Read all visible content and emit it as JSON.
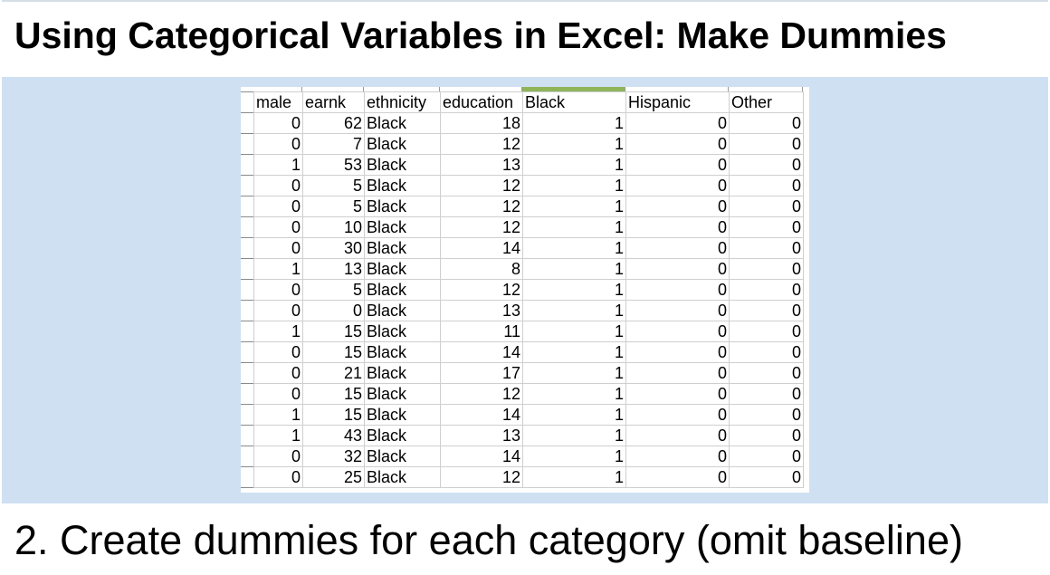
{
  "slide": {
    "title": "Using Categorical Variables in Excel: Make Dummies",
    "caption": "2. Create dummies for each category (omit baseline)"
  },
  "colors": {
    "panel_background": "#cfe0f2",
    "selected_column_header": "#8fb45a",
    "gridline": "#cfcfcf"
  },
  "spreadsheet": {
    "selected_column": "Black",
    "columns": [
      {
        "label": "male",
        "align": "num"
      },
      {
        "label": "earnk",
        "align": "num"
      },
      {
        "label": "ethnicity",
        "align": "txt"
      },
      {
        "label": "education",
        "align": "num"
      },
      {
        "label": "Black",
        "align": "num"
      },
      {
        "label": "Hispanic",
        "align": "num"
      },
      {
        "label": "Other",
        "align": "num"
      }
    ],
    "rows": [
      [
        "0",
        "62",
        "Black",
        "18",
        "1",
        "0",
        "0"
      ],
      [
        "0",
        "7",
        "Black",
        "12",
        "1",
        "0",
        "0"
      ],
      [
        "1",
        "53",
        "Black",
        "13",
        "1",
        "0",
        "0"
      ],
      [
        "0",
        "5",
        "Black",
        "12",
        "1",
        "0",
        "0"
      ],
      [
        "0",
        "5",
        "Black",
        "12",
        "1",
        "0",
        "0"
      ],
      [
        "0",
        "10",
        "Black",
        "12",
        "1",
        "0",
        "0"
      ],
      [
        "0",
        "30",
        "Black",
        "14",
        "1",
        "0",
        "0"
      ],
      [
        "1",
        "13",
        "Black",
        "8",
        "1",
        "0",
        "0"
      ],
      [
        "0",
        "5",
        "Black",
        "12",
        "1",
        "0",
        "0"
      ],
      [
        "0",
        "0",
        "Black",
        "13",
        "1",
        "0",
        "0"
      ],
      [
        "1",
        "15",
        "Black",
        "11",
        "1",
        "0",
        "0"
      ],
      [
        "0",
        "15",
        "Black",
        "14",
        "1",
        "0",
        "0"
      ],
      [
        "0",
        "21",
        "Black",
        "17",
        "1",
        "0",
        "0"
      ],
      [
        "0",
        "15",
        "Black",
        "12",
        "1",
        "0",
        "0"
      ],
      [
        "1",
        "15",
        "Black",
        "14",
        "1",
        "0",
        "0"
      ],
      [
        "1",
        "43",
        "Black",
        "13",
        "1",
        "0",
        "0"
      ],
      [
        "0",
        "32",
        "Black",
        "14",
        "1",
        "0",
        "0"
      ],
      [
        "0",
        "25",
        "Black",
        "12",
        "1",
        "0",
        "0"
      ]
    ]
  }
}
